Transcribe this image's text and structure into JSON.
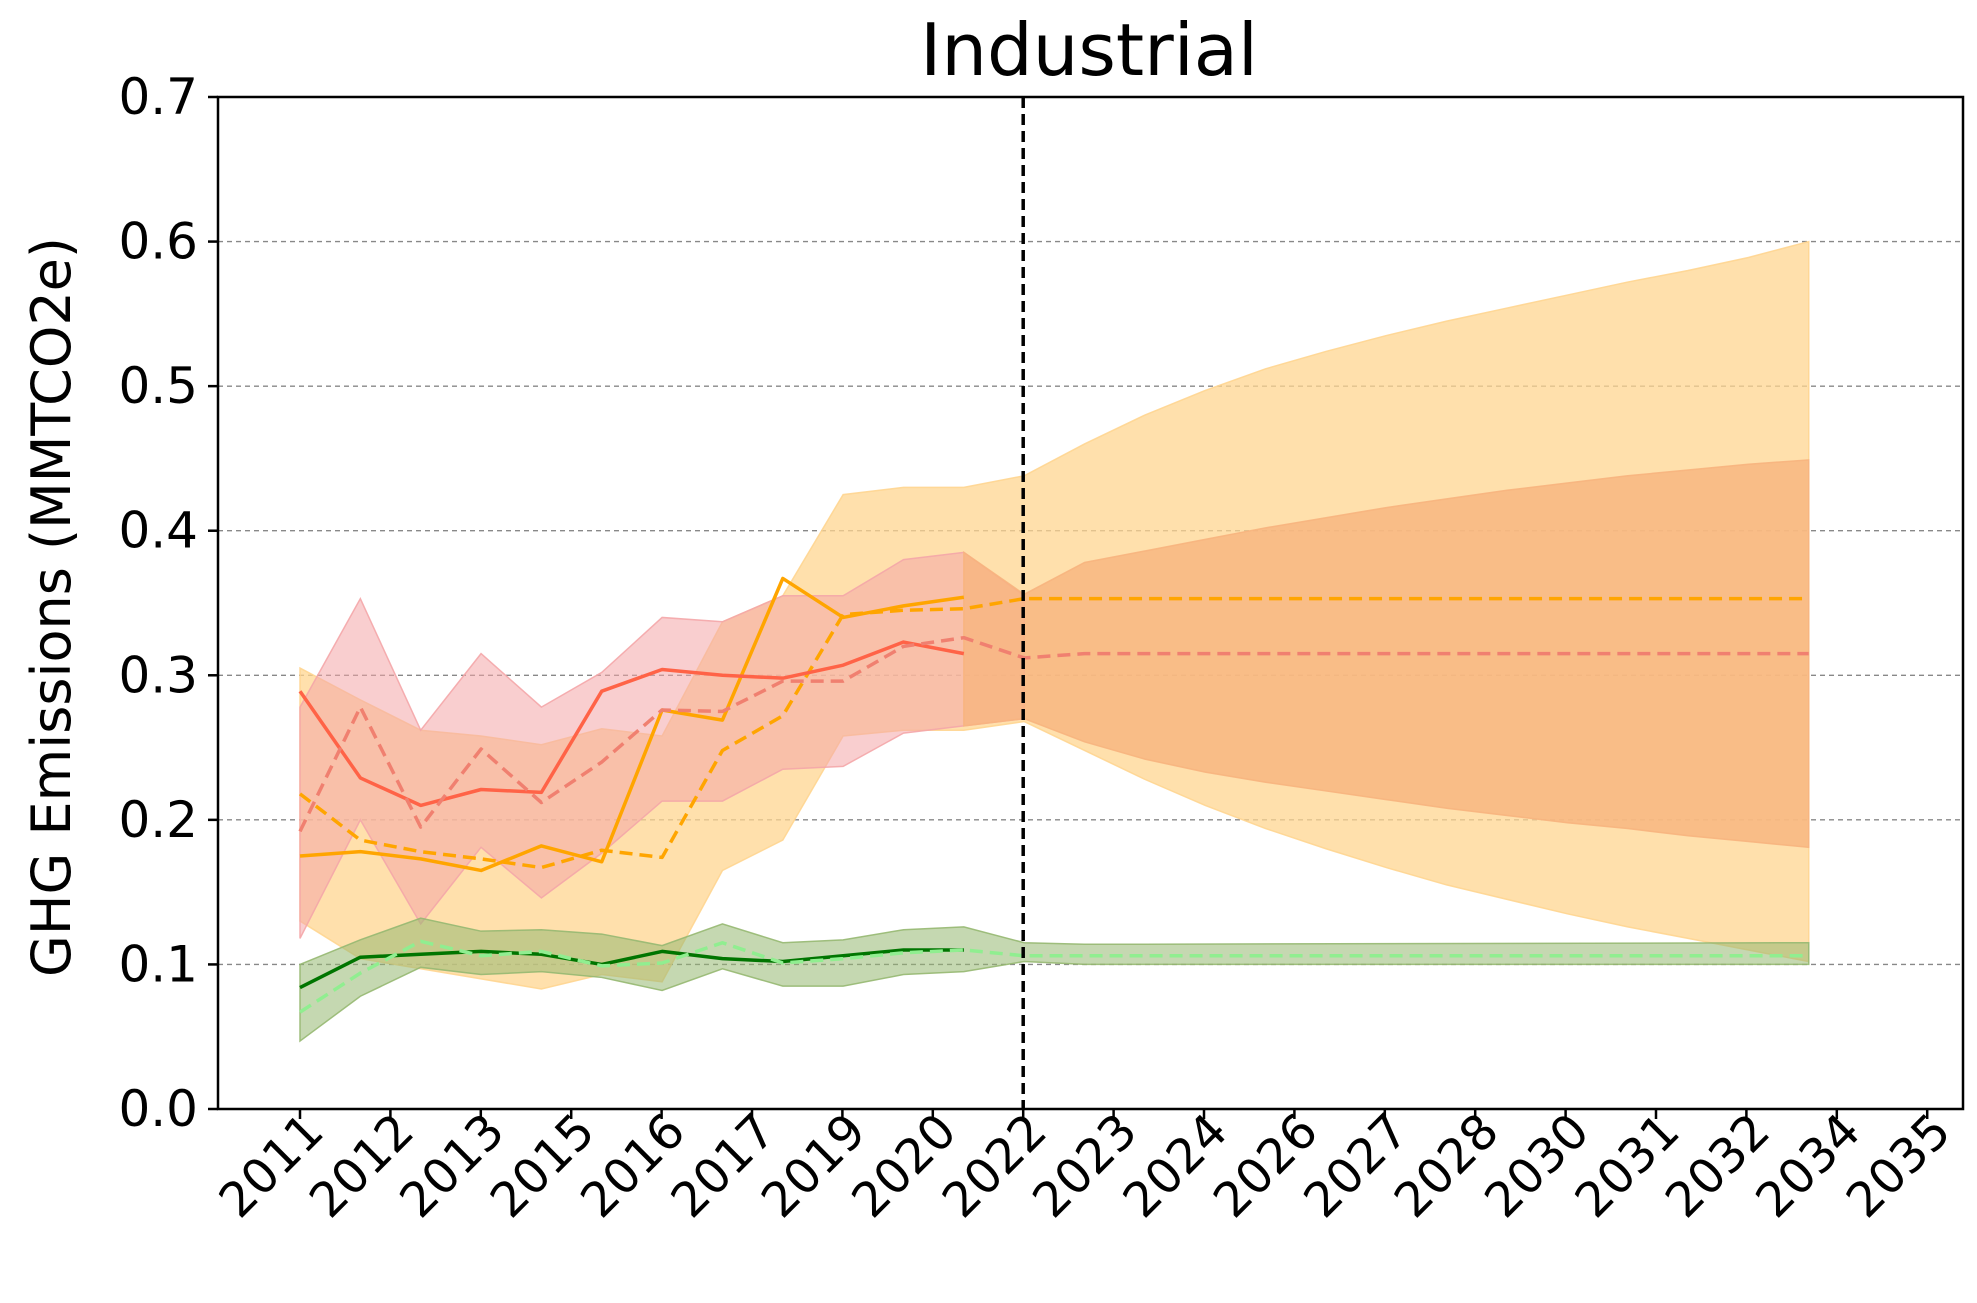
{
  "chart_data": {
    "type": "line",
    "title": "Industrial",
    "xlabel": "",
    "ylabel": "GHG Emissions (MMTCO2e)",
    "ylim": [
      0,
      0.7
    ],
    "yticks": [
      0.0,
      0.1,
      0.2,
      0.3,
      0.4,
      0.5,
      0.6,
      0.7
    ],
    "ytick_labels": [
      "0.0",
      "0.1",
      "0.2",
      "0.3",
      "0.4",
      "0.5",
      "0.6",
      "0.7"
    ],
    "xtick_labels": [
      "2011",
      "2012",
      "2013",
      "2015",
      "2016",
      "2017",
      "2019",
      "2020",
      "2022",
      "2023",
      "2024",
      "2026",
      "2027",
      "2028",
      "2030",
      "2031",
      "2032",
      "2034",
      "2035"
    ],
    "grid": "y-dashed",
    "vline_label_index": 8,
    "x_steps": [
      0,
      1,
      2,
      3,
      4,
      5,
      6,
      7,
      8,
      9,
      10,
      11,
      12,
      13,
      14,
      15,
      16,
      17,
      18,
      19,
      20,
      21,
      22,
      23,
      24,
      25,
      26,
      27,
      28,
      29,
      30,
      31,
      32,
      33,
      34,
      35,
      36,
      37,
      38,
      39,
      40
    ],
    "colors": {
      "orange": "#FFA500",
      "orange_band": "#FFD590",
      "red": "#FF6347",
      "red_dashed": "#F08070",
      "red_band": "#F4A6A8",
      "combined_band": "#F7B47E",
      "green": "#007500",
      "green_dashed": "#90EE90",
      "green_band": "#96B871",
      "vline": "#000000"
    },
    "bands": [
      {
        "name": "",
        "color_key": "orange_band",
        "opacity": 0.75,
        "points": [
          [
            0,
            0.305,
            0.13
          ],
          [
            1,
            0.283,
            0.104
          ],
          [
            2,
            0.262,
            0.097
          ],
          [
            3,
            0.258,
            0.09
          ],
          [
            4,
            0.252,
            0.083
          ],
          [
            5,
            0.263,
            0.093
          ],
          [
            6,
            0.258,
            0.088
          ],
          [
            7,
            0.337,
            0.165
          ],
          [
            8,
            0.355,
            0.186
          ],
          [
            9,
            0.425,
            0.258
          ],
          [
            10,
            0.43,
            0.262
          ],
          [
            11,
            0.43,
            0.262
          ],
          [
            12,
            0.438,
            0.268
          ],
          [
            13,
            0.46,
            0.248
          ],
          [
            14,
            0.48,
            0.228
          ],
          [
            15,
            0.497,
            0.21
          ],
          [
            16,
            0.512,
            0.194
          ],
          [
            17,
            0.524,
            0.18
          ],
          [
            18,
            0.535,
            0.167
          ],
          [
            19,
            0.545,
            0.155
          ],
          [
            20,
            0.554,
            0.145
          ],
          [
            21,
            0.563,
            0.135
          ],
          [
            22,
            0.572,
            0.126
          ],
          [
            23,
            0.58,
            0.118
          ],
          [
            24,
            0.589,
            0.11
          ],
          [
            25,
            0.6,
            0.102
          ]
        ]
      },
      {
        "name": "",
        "color_key": "red_band",
        "opacity": 0.55,
        "points": [
          [
            0,
            0.278,
            0.118
          ],
          [
            1,
            0.353,
            0.2
          ],
          [
            2,
            0.262,
            0.128
          ],
          [
            3,
            0.315,
            0.181
          ],
          [
            4,
            0.278,
            0.146
          ],
          [
            5,
            0.302,
            0.177
          ],
          [
            6,
            0.34,
            0.213
          ],
          [
            7,
            0.337,
            0.213
          ],
          [
            8,
            0.355,
            0.235
          ],
          [
            9,
            0.355,
            0.237
          ],
          [
            10,
            0.38,
            0.26
          ],
          [
            11,
            0.385,
            0.265
          ],
          [
            12,
            0.355,
            0.27
          ]
        ]
      },
      {
        "name": "",
        "color_key": "combined_band",
        "opacity": 0.8,
        "points": [
          [
            11,
            0.385,
            0.265
          ],
          [
            12,
            0.356,
            0.27
          ],
          [
            13,
            0.378,
            0.254
          ],
          [
            14,
            0.386,
            0.242
          ],
          [
            15,
            0.394,
            0.233
          ],
          [
            16,
            0.402,
            0.226
          ],
          [
            17,
            0.409,
            0.22
          ],
          [
            18,
            0.416,
            0.214
          ],
          [
            19,
            0.422,
            0.208
          ],
          [
            20,
            0.428,
            0.203
          ],
          [
            21,
            0.433,
            0.198
          ],
          [
            22,
            0.438,
            0.194
          ],
          [
            23,
            0.442,
            0.189
          ],
          [
            24,
            0.446,
            0.185
          ],
          [
            25,
            0.449,
            0.181
          ]
        ]
      },
      {
        "name": "",
        "color_key": "green_band",
        "opacity": 0.55,
        "points": [
          [
            0,
            0.1,
            0.047
          ],
          [
            1,
            0.117,
            0.078
          ],
          [
            2,
            0.132,
            0.098
          ],
          [
            3,
            0.123,
            0.093
          ],
          [
            4,
            0.124,
            0.095
          ],
          [
            5,
            0.121,
            0.091
          ],
          [
            6,
            0.113,
            0.082
          ],
          [
            7,
            0.128,
            0.097
          ],
          [
            8,
            0.115,
            0.085
          ],
          [
            9,
            0.117,
            0.085
          ],
          [
            10,
            0.124,
            0.093
          ],
          [
            11,
            0.126,
            0.095
          ],
          [
            12,
            0.115,
            0.102
          ],
          [
            13,
            0.114,
            0.1
          ],
          [
            14,
            0.114,
            0.1
          ],
          [
            25,
            0.115,
            0.1
          ]
        ]
      }
    ],
    "series": [
      {
        "name": "",
        "color_key": "orange",
        "style": "solid",
        "points": [
          [
            0,
            0.175
          ],
          [
            1,
            0.178
          ],
          [
            2,
            0.173
          ],
          [
            3,
            0.165
          ],
          [
            4,
            0.182
          ],
          [
            5,
            0.171
          ],
          [
            6,
            0.276
          ],
          [
            7,
            0.269
          ],
          [
            8,
            0.367
          ],
          [
            9,
            0.34
          ],
          [
            10,
            0.348
          ],
          [
            11,
            0.354
          ]
        ]
      },
      {
        "name": "",
        "color_key": "orange",
        "style": "dashed",
        "points": [
          [
            0,
            0.218
          ],
          [
            1,
            0.186
          ],
          [
            2,
            0.178
          ],
          [
            3,
            0.173
          ],
          [
            4,
            0.167
          ],
          [
            5,
            0.179
          ],
          [
            6,
            0.174
          ],
          [
            7,
            0.248
          ],
          [
            8,
            0.272
          ],
          [
            9,
            0.342
          ],
          [
            10,
            0.345
          ],
          [
            11,
            0.346
          ],
          [
            12,
            0.353
          ],
          [
            25,
            0.353
          ]
        ]
      },
      {
        "name": "",
        "color_key": "red",
        "style": "solid",
        "points": [
          [
            0,
            0.289
          ],
          [
            1,
            0.229
          ],
          [
            2,
            0.21
          ],
          [
            3,
            0.221
          ],
          [
            4,
            0.219
          ],
          [
            5,
            0.289
          ],
          [
            6,
            0.304
          ],
          [
            7,
            0.3
          ],
          [
            8,
            0.298
          ],
          [
            9,
            0.307
          ],
          [
            10,
            0.323
          ],
          [
            11,
            0.315
          ]
        ]
      },
      {
        "name": "",
        "color_key": "red_dashed",
        "style": "dashed",
        "points": [
          [
            0,
            0.192
          ],
          [
            1,
            0.278
          ],
          [
            2,
            0.195
          ],
          [
            3,
            0.249
          ],
          [
            4,
            0.212
          ],
          [
            5,
            0.24
          ],
          [
            6,
            0.276
          ],
          [
            7,
            0.275
          ],
          [
            8,
            0.296
          ],
          [
            9,
            0.296
          ],
          [
            10,
            0.32
          ],
          [
            11,
            0.326
          ],
          [
            12,
            0.312
          ],
          [
            13,
            0.315
          ],
          [
            25,
            0.315
          ]
        ]
      },
      {
        "name": "",
        "color_key": "green",
        "style": "solid",
        "points": [
          [
            0,
            0.084
          ],
          [
            1,
            0.105
          ],
          [
            2,
            0.107
          ],
          [
            3,
            0.109
          ],
          [
            4,
            0.107
          ],
          [
            5,
            0.1
          ],
          [
            6,
            0.109
          ],
          [
            7,
            0.104
          ],
          [
            8,
            0.102
          ],
          [
            9,
            0.106
          ],
          [
            10,
            0.11
          ],
          [
            11,
            0.11
          ]
        ]
      },
      {
        "name": "",
        "color_key": "green_dashed",
        "style": "dashed",
        "points": [
          [
            0,
            0.067
          ],
          [
            1,
            0.094
          ],
          [
            2,
            0.116
          ],
          [
            3,
            0.106
          ],
          [
            4,
            0.109
          ],
          [
            5,
            0.099
          ],
          [
            6,
            0.101
          ],
          [
            7,
            0.115
          ],
          [
            8,
            0.101
          ],
          [
            9,
            0.104
          ],
          [
            10,
            0.108
          ],
          [
            11,
            0.11
          ],
          [
            12,
            0.106
          ],
          [
            25,
            0.106
          ]
        ]
      }
    ]
  }
}
